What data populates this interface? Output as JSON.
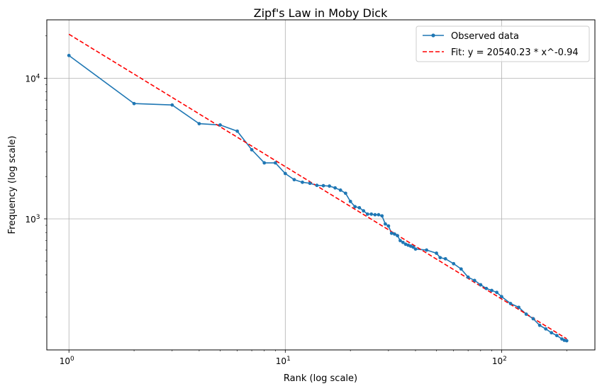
{
  "chart_data": {
    "type": "line",
    "title": "Zipf's Law in Moby Dick",
    "xlabel": "Rank (log scale)",
    "ylabel": "Frequency (log scale)",
    "xscale": "log",
    "yscale": "log",
    "xlim": [
      0.79,
      270
    ],
    "ylim": [
      117,
      26000
    ],
    "grid": true,
    "legend_position": "top-right",
    "x_ticks": [
      {
        "value": 1,
        "base": "10",
        "exp": "0"
      },
      {
        "value": 10,
        "base": "10",
        "exp": "1"
      },
      {
        "value": 100,
        "base": "10",
        "exp": "2"
      }
    ],
    "y_ticks": [
      {
        "value": 1000,
        "base": "10",
        "exp": "3"
      },
      {
        "value": 10000,
        "base": "10",
        "exp": "4"
      }
    ],
    "series": [
      {
        "name": "Observed data",
        "color": "#1f77b4",
        "marker": "circle",
        "x": [
          1,
          2,
          3,
          4,
          5,
          6,
          7,
          8,
          9,
          10,
          11,
          12,
          13,
          14,
          15,
          16,
          17,
          18,
          19,
          20,
          21,
          22,
          23,
          24,
          25,
          26,
          27,
          28,
          29,
          30,
          31,
          32,
          33,
          34,
          35,
          36,
          37,
          38,
          39,
          40,
          45,
          50,
          52,
          55,
          60,
          65,
          70,
          75,
          80,
          85,
          90,
          95,
          100,
          110,
          120,
          130,
          140,
          150,
          160,
          170,
          180,
          190,
          195,
          200
        ],
        "y": [
          14500,
          6600,
          6450,
          4750,
          4650,
          4200,
          3100,
          2500,
          2500,
          2100,
          1900,
          1820,
          1790,
          1730,
          1720,
          1710,
          1660,
          1600,
          1520,
          1330,
          1220,
          1200,
          1140,
          1080,
          1080,
          1070,
          1070,
          1050,
          920,
          890,
          790,
          780,
          760,
          700,
          680,
          660,
          650,
          640,
          630,
          610,
          600,
          570,
          530,
          520,
          480,
          440,
          385,
          365,
          340,
          320,
          310,
          300,
          280,
          250,
          235,
          210,
          195,
          175,
          165,
          155,
          148,
          140,
          137,
          136
        ]
      },
      {
        "name": "Fit: y = 20540.23 * x^-0.94",
        "color": "#ff0000",
        "style": "dashed",
        "x": [
          1,
          200
        ],
        "y": [
          20540.23,
          140.4
        ]
      }
    ]
  }
}
